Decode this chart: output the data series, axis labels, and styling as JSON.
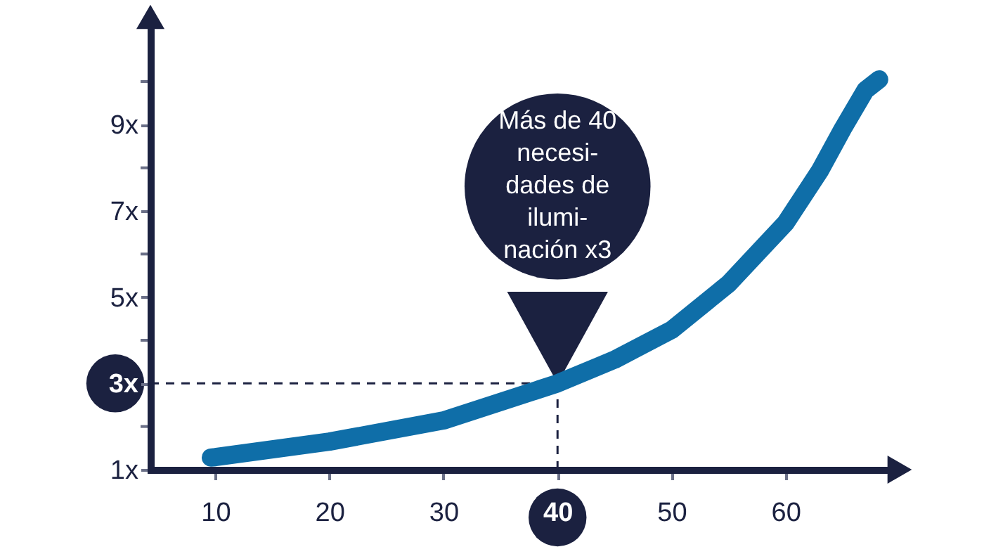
{
  "chart_data": {
    "type": "line",
    "x": [
      9.6,
      10,
      20,
      30,
      40,
      45,
      50,
      55,
      60,
      63,
      65,
      67,
      68.2
    ],
    "series": [
      {
        "color": "#0f6ea8",
        "values": [
          1.28,
          1.29,
          1.65,
          2.14,
          3,
          3.55,
          4.24,
          5.31,
          6.72,
          7.93,
          8.9,
          9.8,
          10.05
        ]
      }
    ],
    "xlim": [
      4.3,
      70
    ],
    "ylim": [
      1,
      11.5
    ],
    "xticks": [
      10,
      20,
      30,
      40,
      50,
      60
    ],
    "yticks": [
      {
        "value": 1,
        "label": "1x"
      },
      {
        "value": 2,
        "label": null
      },
      {
        "value": 3,
        "label": "3x"
      },
      {
        "value": 4,
        "label": null
      },
      {
        "value": 5,
        "label": "5x"
      },
      {
        "value": 6,
        "label": null
      },
      {
        "value": 7,
        "label": "7x"
      },
      {
        "value": 8,
        "label": null
      },
      {
        "value": 9,
        "label": "9x"
      },
      {
        "value": 10,
        "label": null
      }
    ],
    "ref_lines": [
      {
        "axis": "y",
        "value": 3,
        "color": "#1b2140",
        "line_style": "dashed"
      },
      {
        "axis": "x",
        "value": 40,
        "color": "#1b2140",
        "line_style": "dashed"
      }
    ],
    "annotations": [
      "Más de 40\nnecesi-\ndades de\nilumi-\nnación x3"
    ],
    "grid": false,
    "line_style": "solid",
    "marker": "none"
  }
}
